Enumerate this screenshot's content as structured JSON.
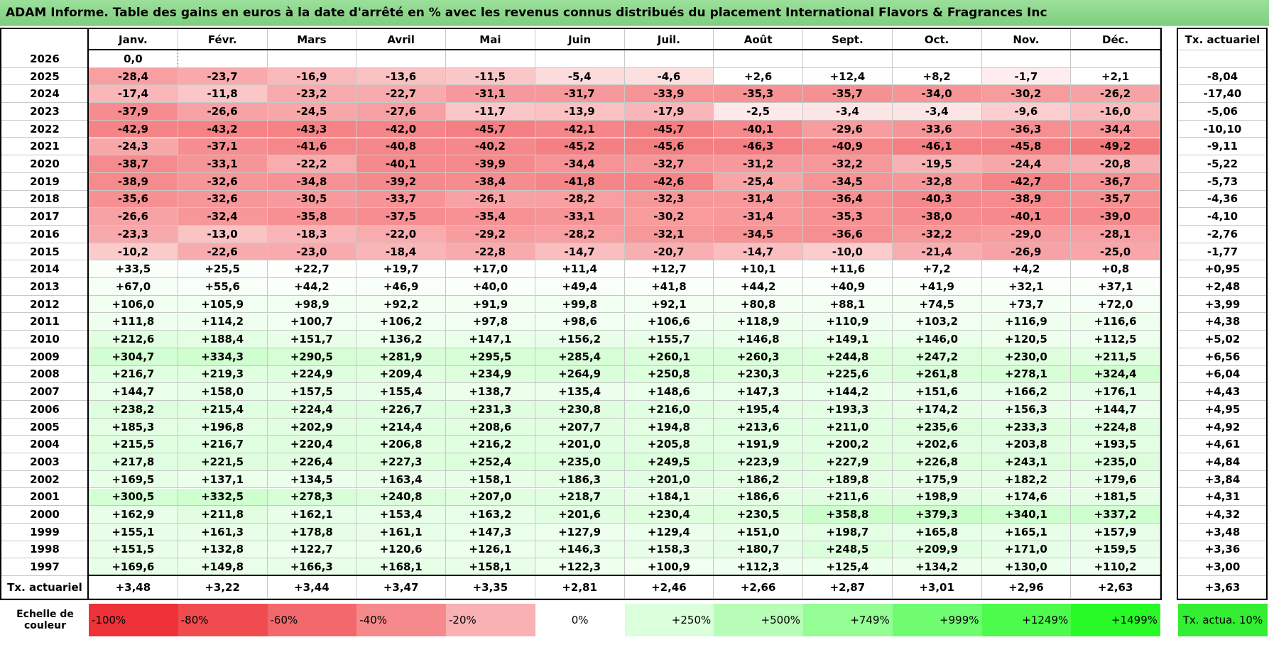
{
  "title": "ADAM Informe. Table des gains en euros à la date d'arrêté en % avec les revenus connus distribués du placement International Flavors & Fragrances Inc",
  "table": {
    "months": [
      "Janv.",
      "Févr.",
      "Mars",
      "Avril",
      "Mai",
      "Juin",
      "Juil.",
      "Août",
      "Sept.",
      "Oct.",
      "Nov.",
      "Déc."
    ],
    "tx_header": "Tx. actuariel",
    "rows": [
      {
        "year": "2026",
        "cells": [
          "0,0",
          null,
          null,
          null,
          null,
          null,
          null,
          null,
          null,
          null,
          null,
          null
        ],
        "tx": null
      },
      {
        "year": "2025",
        "cells": [
          "-28,4",
          "-23,7",
          "-16,9",
          "-13,6",
          "-11,5",
          "-5,4",
          "-4,6",
          "+2,6",
          "+12,4",
          "+8,2",
          "-1,7",
          "+2,1"
        ],
        "tx": "-8,04"
      },
      {
        "year": "2024",
        "cells": [
          "-17,4",
          "-11,8",
          "-23,2",
          "-22,7",
          "-31,1",
          "-31,7",
          "-33,9",
          "-35,3",
          "-35,7",
          "-34,0",
          "-30,2",
          "-26,2"
        ],
        "tx": "-17,40"
      },
      {
        "year": "2023",
        "cells": [
          "-37,9",
          "-26,6",
          "-24,5",
          "-27,6",
          "-11,7",
          "-13,9",
          "-17,9",
          "-2,5",
          "-3,4",
          "-3,4",
          "-9,6",
          "-16,0"
        ],
        "tx": "-5,06"
      },
      {
        "year": "2022",
        "cells": [
          "-42,9",
          "-43,2",
          "-43,3",
          "-42,0",
          "-45,7",
          "-42,1",
          "-45,7",
          "-40,1",
          "-29,6",
          "-33,6",
          "-36,3",
          "-34,4"
        ],
        "tx": "-10,10"
      },
      {
        "year": "2021",
        "cells": [
          "-24,3",
          "-37,1",
          "-41,6",
          "-40,8",
          "-40,2",
          "-45,2",
          "-45,6",
          "-46,3",
          "-40,9",
          "-46,1",
          "-45,8",
          "-49,2"
        ],
        "tx": "-9,11"
      },
      {
        "year": "2020",
        "cells": [
          "-38,7",
          "-33,1",
          "-22,2",
          "-40,1",
          "-39,9",
          "-34,4",
          "-32,7",
          "-31,2",
          "-32,2",
          "-19,5",
          "-24,4",
          "-20,8"
        ],
        "tx": "-5,22"
      },
      {
        "year": "2019",
        "cells": [
          "-38,9",
          "-32,6",
          "-34,8",
          "-39,2",
          "-38,4",
          "-41,8",
          "-42,6",
          "-25,4",
          "-34,5",
          "-32,8",
          "-42,7",
          "-36,7"
        ],
        "tx": "-5,73"
      },
      {
        "year": "2018",
        "cells": [
          "-35,6",
          "-32,6",
          "-30,5",
          "-33,7",
          "-26,1",
          "-28,2",
          "-32,3",
          "-31,4",
          "-36,4",
          "-40,3",
          "-38,9",
          "-35,7"
        ],
        "tx": "-4,36"
      },
      {
        "year": "2017",
        "cells": [
          "-26,6",
          "-32,4",
          "-35,8",
          "-37,5",
          "-35,4",
          "-33,1",
          "-30,2",
          "-31,4",
          "-35,3",
          "-38,0",
          "-40,1",
          "-39,0"
        ],
        "tx": "-4,10"
      },
      {
        "year": "2016",
        "cells": [
          "-23,3",
          "-13,0",
          "-18,3",
          "-22,0",
          "-29,2",
          "-28,2",
          "-32,1",
          "-34,5",
          "-36,6",
          "-32,2",
          "-29,0",
          "-28,1"
        ],
        "tx": "-2,76"
      },
      {
        "year": "2015",
        "cells": [
          "-10,2",
          "-22,6",
          "-23,0",
          "-18,4",
          "-22,8",
          "-14,7",
          "-20,7",
          "-14,7",
          "-10,0",
          "-21,4",
          "-26,9",
          "-25,0"
        ],
        "tx": "-1,77"
      },
      {
        "year": "2014",
        "cells": [
          "+33,5",
          "+25,5",
          "+22,7",
          "+19,7",
          "+17,0",
          "+11,4",
          "+12,7",
          "+10,1",
          "+11,6",
          "+7,2",
          "+4,2",
          "+0,8"
        ],
        "tx": "+0,95"
      },
      {
        "year": "2013",
        "cells": [
          "+67,0",
          "+55,6",
          "+44,2",
          "+46,9",
          "+40,0",
          "+49,4",
          "+41,8",
          "+44,2",
          "+40,9",
          "+41,9",
          "+32,1",
          "+37,1"
        ],
        "tx": "+2,48"
      },
      {
        "year": "2012",
        "cells": [
          "+106,0",
          "+105,9",
          "+98,9",
          "+92,2",
          "+91,9",
          "+99,8",
          "+92,1",
          "+80,8",
          "+88,1",
          "+74,5",
          "+73,7",
          "+72,0"
        ],
        "tx": "+3,99"
      },
      {
        "year": "2011",
        "cells": [
          "+111,8",
          "+114,2",
          "+100,7",
          "+106,2",
          "+97,8",
          "+98,6",
          "+106,6",
          "+118,9",
          "+110,9",
          "+103,2",
          "+116,9",
          "+116,6"
        ],
        "tx": "+4,38"
      },
      {
        "year": "2010",
        "cells": [
          "+212,6",
          "+188,4",
          "+151,7",
          "+136,2",
          "+147,1",
          "+156,2",
          "+155,7",
          "+146,8",
          "+149,1",
          "+146,0",
          "+120,5",
          "+112,5"
        ],
        "tx": "+5,02"
      },
      {
        "year": "2009",
        "cells": [
          "+304,7",
          "+334,3",
          "+290,5",
          "+281,9",
          "+295,5",
          "+285,4",
          "+260,1",
          "+260,3",
          "+244,8",
          "+247,2",
          "+230,0",
          "+211,5"
        ],
        "tx": "+6,56"
      },
      {
        "year": "2008",
        "cells": [
          "+216,7",
          "+219,3",
          "+224,9",
          "+209,4",
          "+234,9",
          "+264,9",
          "+250,8",
          "+230,3",
          "+225,6",
          "+261,8",
          "+278,1",
          "+324,4"
        ],
        "tx": "+6,04"
      },
      {
        "year": "2007",
        "cells": [
          "+144,7",
          "+158,0",
          "+157,5",
          "+155,4",
          "+138,7",
          "+135,4",
          "+148,6",
          "+147,3",
          "+144,2",
          "+151,6",
          "+166,2",
          "+176,1"
        ],
        "tx": "+4,43"
      },
      {
        "year": "2006",
        "cells": [
          "+238,2",
          "+215,4",
          "+224,4",
          "+226,7",
          "+231,3",
          "+230,8",
          "+216,0",
          "+195,4",
          "+193,3",
          "+174,2",
          "+156,3",
          "+144,7"
        ],
        "tx": "+4,95"
      },
      {
        "year": "2005",
        "cells": [
          "+185,3",
          "+196,8",
          "+202,9",
          "+214,4",
          "+208,6",
          "+207,7",
          "+194,8",
          "+213,6",
          "+211,0",
          "+235,6",
          "+233,3",
          "+224,8"
        ],
        "tx": "+4,92"
      },
      {
        "year": "2004",
        "cells": [
          "+215,5",
          "+216,7",
          "+220,4",
          "+206,8",
          "+216,2",
          "+201,0",
          "+205,8",
          "+191,9",
          "+200,2",
          "+202,6",
          "+203,8",
          "+193,5"
        ],
        "tx": "+4,61"
      },
      {
        "year": "2003",
        "cells": [
          "+217,8",
          "+221,5",
          "+226,4",
          "+227,3",
          "+252,4",
          "+235,0",
          "+249,5",
          "+223,9",
          "+227,9",
          "+226,8",
          "+243,1",
          "+235,0"
        ],
        "tx": "+4,84"
      },
      {
        "year": "2002",
        "cells": [
          "+169,5",
          "+137,1",
          "+134,5",
          "+163,4",
          "+158,1",
          "+186,3",
          "+201,0",
          "+186,2",
          "+189,8",
          "+175,9",
          "+182,2",
          "+179,6"
        ],
        "tx": "+3,84"
      },
      {
        "year": "2001",
        "cells": [
          "+300,5",
          "+332,5",
          "+278,3",
          "+240,8",
          "+207,0",
          "+218,7",
          "+184,1",
          "+186,6",
          "+211,6",
          "+198,9",
          "+174,6",
          "+181,5"
        ],
        "tx": "+4,31"
      },
      {
        "year": "2000",
        "cells": [
          "+162,9",
          "+211,8",
          "+162,1",
          "+153,4",
          "+163,2",
          "+201,6",
          "+230,4",
          "+230,5",
          "+358,8",
          "+379,3",
          "+340,1",
          "+337,2"
        ],
        "tx": "+4,32"
      },
      {
        "year": "1999",
        "cells": [
          "+155,1",
          "+161,3",
          "+178,8",
          "+161,1",
          "+147,3",
          "+127,9",
          "+129,4",
          "+151,0",
          "+198,7",
          "+165,8",
          "+165,1",
          "+157,9"
        ],
        "tx": "+3,48"
      },
      {
        "year": "1998",
        "cells": [
          "+151,5",
          "+132,8",
          "+122,7",
          "+120,6",
          "+126,1",
          "+146,3",
          "+158,3",
          "+180,7",
          "+248,5",
          "+209,9",
          "+171,0",
          "+159,5"
        ],
        "tx": "+3,36"
      },
      {
        "year": "1997",
        "cells": [
          "+169,6",
          "+149,8",
          "+166,3",
          "+168,1",
          "+158,1",
          "+122,3",
          "+100,9",
          "+112,3",
          "+125,4",
          "+134,2",
          "+130,0",
          "+110,2"
        ],
        "tx": "+3,00"
      }
    ],
    "total": {
      "label": "Tx. actuariel",
      "cells": [
        "+3,48",
        "+3,22",
        "+3,44",
        "+3,47",
        "+3,35",
        "+2,81",
        "+2,46",
        "+2,66",
        "+2,87",
        "+3,01",
        "+2,96",
        "+2,63"
      ],
      "tx": "+3,63"
    }
  },
  "scale": {
    "label": "Echelle de couleur",
    "items": [
      "-100%",
      "-80%",
      "-60%",
      "-40%",
      "-20%",
      "0%",
      "+250%",
      "+500%",
      "+749%",
      "+999%",
      "+1249%",
      "+1499%"
    ],
    "tx": "Tx. actua. 10%"
  }
}
